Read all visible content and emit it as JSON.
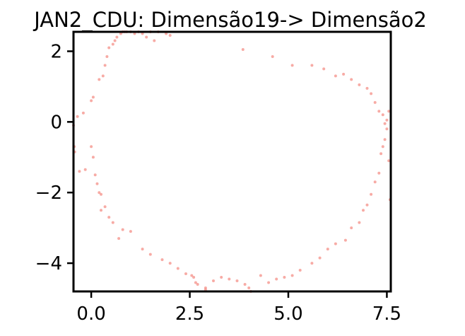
{
  "chart_data": {
    "type": "scatter",
    "title": "JAN2_CDU: Dimensão19-> Dimensão2",
    "xlabel": "",
    "ylabel": "",
    "xlim": [
      -0.45,
      7.6
    ],
    "ylim": [
      -4.8,
      2.55
    ],
    "xticks": [
      0.0,
      2.5,
      5.0,
      7.5
    ],
    "xtick_labels": [
      "0.0",
      "2.5",
      "5.0",
      "7.5"
    ],
    "yticks": [
      2,
      0,
      -2,
      -4
    ],
    "ytick_labels": [
      "2",
      "0",
      "−2",
      "−4"
    ],
    "grid": false,
    "legend": "none",
    "point_color": "#f4877f",
    "x": [
      -0.45,
      -0.43,
      -0.42,
      -0.35,
      -0.3,
      -0.2,
      -0.15,
      0.0,
      0.0,
      0.05,
      0.05,
      0.1,
      0.15,
      0.2,
      0.25,
      0.2,
      0.3,
      0.35,
      0.4,
      0.45,
      0.55,
      0.6,
      0.65,
      0.75,
      0.8,
      0.85,
      0.9,
      1.0,
      1.1,
      1.2,
      1.3,
      1.4,
      1.5,
      1.6,
      1.7,
      1.9,
      2.0,
      2.2,
      2.4,
      2.6,
      2.7,
      2.9,
      3.1,
      3.3,
      3.5,
      3.7,
      3.9,
      4.0,
      4.3,
      4.5,
      4.7,
      4.9,
      5.1,
      5.3,
      5.6,
      5.8,
      6.0,
      6.2,
      6.45,
      6.6,
      6.8,
      6.9,
      7.0,
      7.1,
      7.2,
      7.3,
      7.35,
      7.4,
      7.45,
      7.5,
      7.55,
      7.58,
      7.55,
      7.5,
      7.45,
      7.4,
      7.3,
      7.2,
      7.1,
      7.0,
      6.8,
      6.6,
      6.4,
      6.2,
      5.9,
      5.6,
      5.1,
      4.6,
      3.85,
      2.0,
      1.8,
      1.5,
      1.3,
      1.0,
      0.8,
      0.7,
      0.55,
      0.45,
      0.35,
      0.25,
      2.55,
      2.65,
      2.9,
      4.05
    ],
    "y": [
      -0.1,
      -0.7,
      -0.85,
      0.15,
      -1.4,
      0.25,
      -1.35,
      0.6,
      -0.7,
      0.7,
      -1.0,
      -1.5,
      -1.75,
      -2.0,
      -2.05,
      1.2,
      1.3,
      1.6,
      1.85,
      2.1,
      2.2,
      2.3,
      2.4,
      2.5,
      2.55,
      2.6,
      2.55,
      2.55,
      2.5,
      2.55,
      2.5,
      2.4,
      2.55,
      2.3,
      2.55,
      2.5,
      2.45,
      -4.15,
      -4.3,
      -4.4,
      -4.6,
      -4.7,
      -4.5,
      -4.4,
      -4.45,
      -4.5,
      -4.6,
      -4.7,
      -4.35,
      -4.55,
      -4.45,
      -4.4,
      -4.35,
      -4.2,
      -4.0,
      -3.85,
      -3.6,
      -3.45,
      -3.35,
      -3.0,
      -2.85,
      -2.5,
      -2.35,
      -2.05,
      -1.7,
      -1.45,
      -0.9,
      -0.7,
      -0.5,
      -0.2,
      -1.1,
      -2.2,
      0.3,
      0.05,
      -0.05,
      0.2,
      0.3,
      0.55,
      0.8,
      0.95,
      1.05,
      1.2,
      1.35,
      1.3,
      1.5,
      1.6,
      1.6,
      1.85,
      2.05,
      -4.0,
      -3.9,
      -3.75,
      -3.6,
      -3.1,
      -3.05,
      -3.3,
      -2.85,
      -2.7,
      -2.4,
      -2.5,
      -4.35,
      -4.55,
      -4.75,
      -4.8
    ]
  }
}
